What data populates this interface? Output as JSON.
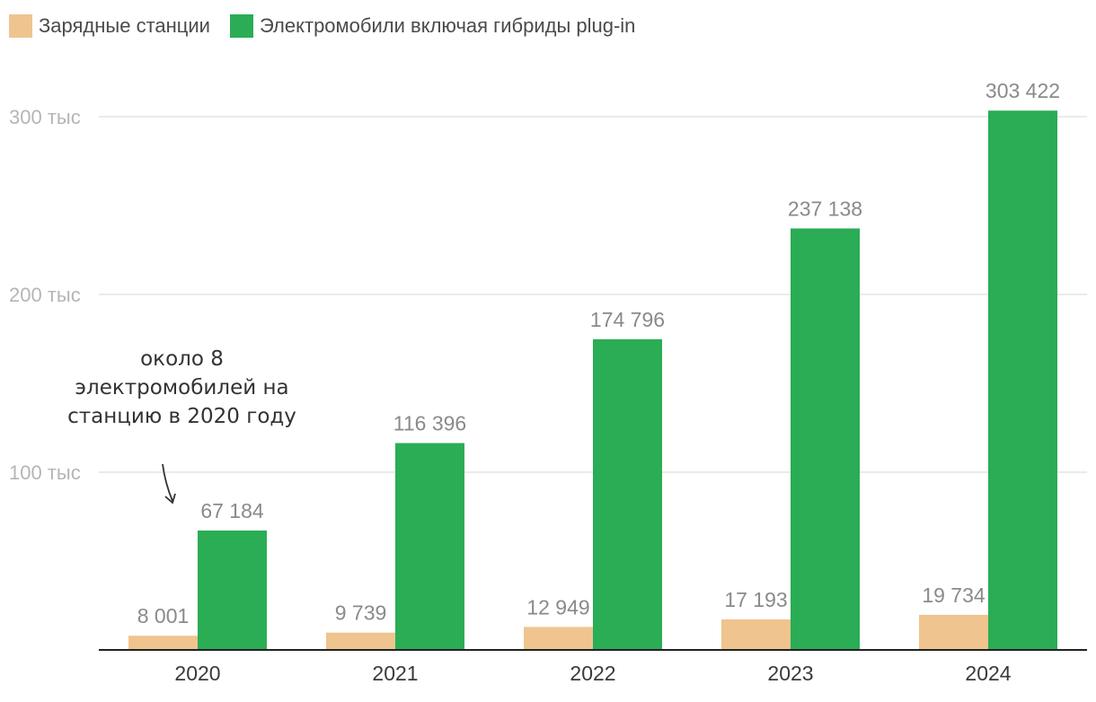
{
  "chart_data": {
    "type": "bar",
    "categories": [
      "2020",
      "2021",
      "2022",
      "2023",
      "2024"
    ],
    "series": [
      {
        "name": "Зарядные станции",
        "color": "#efc48f",
        "values": [
          8001,
          9739,
          12949,
          17193,
          19734
        ],
        "labels": [
          "8 001",
          "9 739",
          "12 949",
          "17 193",
          "19 734"
        ]
      },
      {
        "name": "Электромобили включая гибриды plug-in",
        "color": "#2aad55",
        "values": [
          67184,
          116396,
          174796,
          237138,
          303422
        ],
        "labels": [
          "67 184",
          "116 396",
          "174 796",
          "237 138",
          "303 422"
        ]
      }
    ],
    "ylim": [
      0,
      300000
    ],
    "yticks": [
      {
        "value": 100000,
        "label": "100 тыс"
      },
      {
        "value": 200000,
        "label": "200 тыс"
      },
      {
        "value": 300000,
        "label": "300 тыс"
      }
    ],
    "grid": true,
    "legend": "top-left",
    "annotation": "около 8 электромобилей на станцию в 2020 году"
  }
}
